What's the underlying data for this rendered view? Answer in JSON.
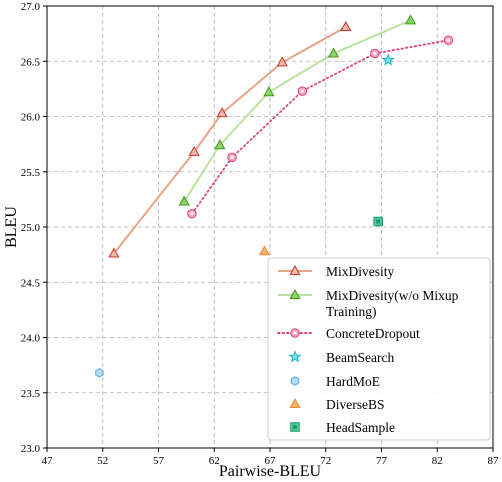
{
  "chart_data": {
    "type": "scatter",
    "xlabel": "Pairwise-BLEU",
    "ylabel": "BLEU",
    "xlim": [
      47,
      87
    ],
    "ylim": [
      23.0,
      27.0
    ],
    "xticks": [
      "47",
      "52",
      "57",
      "62",
      "67",
      "72",
      "77",
      "82",
      "87"
    ],
    "yticks": [
      "23.0",
      "23.5",
      "24.0",
      "24.5",
      "25.0",
      "25.5",
      "26.0",
      "26.5",
      "27.0"
    ],
    "grid": true,
    "legend_position": "bottom-right",
    "series": [
      {
        "name": "MixDivesity",
        "kind": "line",
        "marker": "triangle",
        "line_color": "#e8a488",
        "marker_edge": "#c0392b",
        "marker_fill": "#f5b7a8",
        "points": [
          [
            53.0,
            24.76
          ],
          [
            60.2,
            25.68
          ],
          [
            62.7,
            26.03
          ],
          [
            68.1,
            26.49
          ],
          [
            73.8,
            26.81
          ]
        ]
      },
      {
        "name": "MixDivesity(w/o Mixup Training)",
        "name_lines": [
          "MixDivesity(w/o Mixup",
          "Training)"
        ],
        "kind": "line",
        "marker": "triangle",
        "line_color": "#b8e3a0",
        "marker_edge": "#3f9a1a",
        "marker_fill": "#8fd16a",
        "points": [
          [
            59.3,
            25.23
          ],
          [
            62.5,
            25.74
          ],
          [
            66.9,
            26.22
          ],
          [
            72.7,
            26.57
          ],
          [
            79.6,
            26.87
          ]
        ]
      },
      {
        "name": "ConcreteDropout",
        "kind": "dotted",
        "marker": "circle",
        "line_color": "#e0457a",
        "marker_edge": "#e0457a",
        "marker_fill": "#f7a8c2",
        "points": [
          [
            60.0,
            25.12
          ],
          [
            63.6,
            25.63
          ],
          [
            69.9,
            26.23
          ],
          [
            76.4,
            26.57
          ],
          [
            83.0,
            26.69
          ]
        ]
      },
      {
        "name": "BeamSearch",
        "kind": "point",
        "marker": "star",
        "marker_edge": "#1fb5c4",
        "marker_fill": "#7fe0e8",
        "points": [
          [
            77.6,
            26.51
          ]
        ]
      },
      {
        "name": "HardMoE",
        "kind": "point",
        "marker": "hexagon",
        "marker_edge": "#5aa8e6",
        "marker_fill": "#b8dcf7",
        "points": [
          [
            51.7,
            23.68
          ]
        ]
      },
      {
        "name": "DiverseBS",
        "kind": "point",
        "marker": "triangle",
        "marker_edge": "#f08a2a",
        "marker_fill": "#f7b36b",
        "points": [
          [
            66.5,
            24.78
          ]
        ]
      },
      {
        "name": "HeadSample",
        "kind": "point",
        "marker": "square",
        "marker_edge": "#1a9c6c",
        "marker_fill": "#4fc79a",
        "points": [
          [
            76.7,
            25.05
          ]
        ]
      }
    ]
  }
}
